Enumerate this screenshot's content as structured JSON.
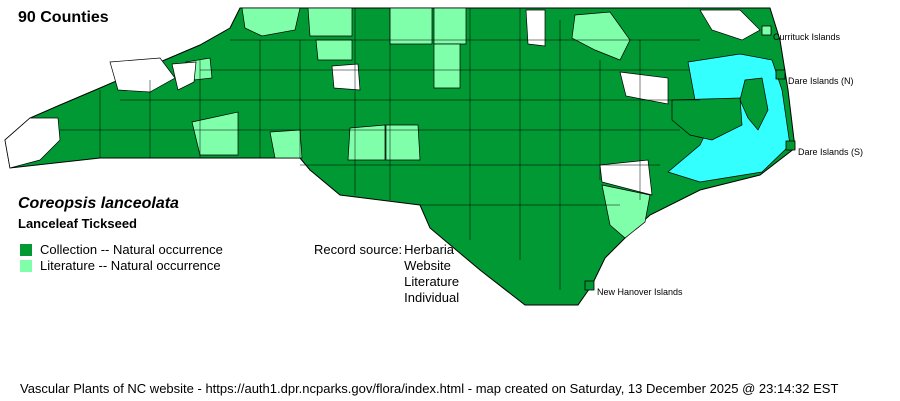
{
  "county_count": "90 Counties",
  "species": {
    "scientific_name": "Coreopsis lanceolata",
    "common_name": "Lanceleaf Tickseed"
  },
  "legend": [
    {
      "label": "Collection -- Natural occurrence",
      "color": "#009933"
    },
    {
      "label": "Literature -- Natural occurrence",
      "color": "#80ffaa"
    }
  ],
  "record_source": {
    "label": "Record source:",
    "items": [
      "Herbaria",
      "Website",
      "Literature",
      "Individual"
    ]
  },
  "islands": [
    {
      "label": "Currituck Islands",
      "status": "literature"
    },
    {
      "label": "Dare Islands (N)",
      "status": "collection"
    },
    {
      "label": "Dare Islands (S)",
      "status": "collection"
    },
    {
      "label": "New Hanover Islands",
      "status": "collection"
    }
  ],
  "colors": {
    "collection": "#009933",
    "literature": "#80ffaa",
    "no_record": "#ffffff",
    "water": "#33ffff"
  },
  "footer": "Vascular Plants of NC website - https://auth1.dpr.ncparks.gov/flora/index.html - map created on Saturday, 13 December 2025 @ 23:14:32 EST"
}
